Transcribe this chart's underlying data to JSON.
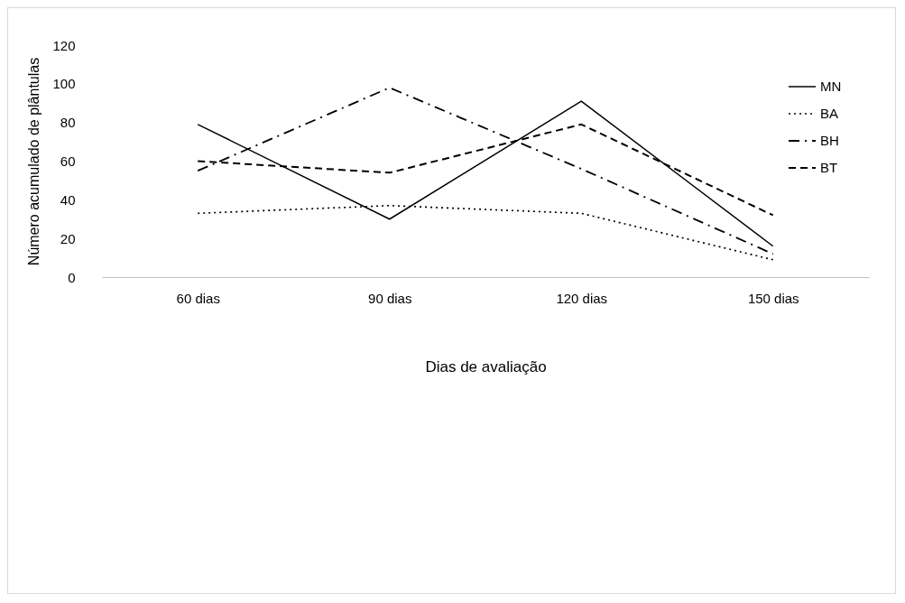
{
  "chart_data": {
    "type": "line",
    "xlabel": "Dias de avaliação",
    "ylabel": "Número acumulado de plântulas",
    "categories": [
      "60 dias",
      "90 dias",
      "120 dias",
      "150 dias"
    ],
    "ylim": [
      0,
      120
    ],
    "yticks": [
      0,
      20,
      40,
      60,
      80,
      100,
      120
    ],
    "grid": false,
    "legend": "top right",
    "marker": "none",
    "series": [
      {
        "name": "MN",
        "color": "#000000",
        "line_style": "solid",
        "values": [
          79,
          30,
          91,
          16
        ]
      },
      {
        "name": "BA",
        "color": "#000000",
        "line_style": "dotted",
        "values": [
          33,
          37,
          33,
          9
        ]
      },
      {
        "name": "BH",
        "color": "#000000",
        "line_style": "dashdot",
        "values": [
          55,
          98,
          56,
          12
        ]
      },
      {
        "name": "BT",
        "color": "#000000",
        "line_style": "dashed",
        "values": [
          60,
          54,
          79,
          32
        ]
      }
    ]
  }
}
